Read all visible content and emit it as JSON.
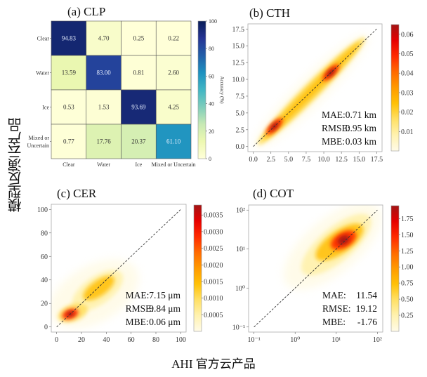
{
  "figure": {
    "ylabel": "模型反演云产品",
    "xlabel": "AHI 官方云产品"
  },
  "colors": {
    "ylgnbu": [
      "#ffffd9",
      "#edf8b1",
      "#c7e9b4",
      "#7fcdbb",
      "#41b6c4",
      "#1d91c0",
      "#225ea8",
      "#253494",
      "#081d58"
    ],
    "hot": [
      "#fffbe8",
      "#fff2b0",
      "#ffe066",
      "#ffc107",
      "#ff9a00",
      "#ff6a00",
      "#ff2a00",
      "#e60000",
      "#a31515"
    ]
  },
  "chart_data": [
    {
      "type": "heatmap",
      "title": "(a) CLP",
      "row_labels": [
        "Clear",
        "Water",
        "Ice",
        "Mixed or Uncertain"
      ],
      "row_label_lines": [
        [
          "Clear"
        ],
        [
          "Water"
        ],
        [
          "Ice"
        ],
        [
          "Mixed or",
          "Uncertain"
        ]
      ],
      "col_labels": [
        "Clear",
        "Water",
        "Ice",
        "Mixed or Uncertain"
      ],
      "values": [
        [
          94.83,
          4.7,
          0.25,
          0.22
        ],
        [
          13.59,
          83.0,
          0.81,
          2.6
        ],
        [
          0.53,
          1.53,
          93.69,
          4.25
        ],
        [
          0.77,
          17.76,
          20.37,
          61.1
        ]
      ],
      "value_labels": [
        [
          "94.83",
          "4.70",
          "0.25",
          "0.22"
        ],
        [
          "13.59",
          "83.00",
          "0.81",
          "2.60"
        ],
        [
          "0.53",
          "1.53",
          "93.69",
          "4.25"
        ],
        [
          "0.77",
          "17.76",
          "20.37",
          "61.10"
        ]
      ],
      "colorbar": {
        "label": "Accuracy (%)",
        "range": [
          0,
          100
        ],
        "ticks": [
          "0",
          "20",
          "40",
          "60",
          "80",
          "100"
        ]
      }
    },
    {
      "type": "density-scatter",
      "title": "(b) CTH",
      "xlim": [
        0,
        17.5
      ],
      "ylim": [
        0,
        17.5
      ],
      "scale": "linear",
      "xticks": [
        "0.0",
        "2.5",
        "5.0",
        "7.5",
        "10.0",
        "12.5",
        "15.0",
        "17.5"
      ],
      "yticks": [
        "0.0",
        "2.5",
        "5.0",
        "7.5",
        "10.0",
        "12.5",
        "15.0",
        "17.5"
      ],
      "reference_line": "1:1",
      "density_peaks": [
        {
          "x": 3.0,
          "y": 3.0
        },
        {
          "x": 11.0,
          "y": 11.0
        }
      ],
      "stats": [
        {
          "name": "MAE:",
          "value": "0.71 km"
        },
        {
          "name": "RMSE:",
          "value": "0.95 km"
        },
        {
          "name": "MBE:",
          "value": "0.03 km"
        }
      ],
      "colorbar": {
        "range": [
          0,
          0.065
        ],
        "ticks": [
          "0.01",
          "0.02",
          "0.03",
          "0.04",
          "0.05",
          "0.06"
        ]
      }
    },
    {
      "type": "density-scatter",
      "title": "(c) CER",
      "xlim": [
        0,
        100
      ],
      "ylim": [
        0,
        100
      ],
      "scale": "linear",
      "xticks": [
        "0",
        "20",
        "40",
        "60",
        "80",
        "100"
      ],
      "yticks": [
        "0",
        "20",
        "40",
        "60",
        "80",
        "100"
      ],
      "reference_line": "1:1",
      "density_peaks": [
        {
          "x": 11,
          "y": 11
        },
        {
          "x": 35,
          "y": 33
        }
      ],
      "stats": [
        {
          "name": "MAE:",
          "value": "7.15 μm"
        },
        {
          "name": "RMSE:",
          "value": "9.84 μm"
        },
        {
          "name": "MBE:",
          "value": "0.06 μm"
        }
      ],
      "colorbar": {
        "range": [
          0,
          0.0038
        ],
        "ticks": [
          "0.0005",
          "0.0010",
          "0.0015",
          "0.0020",
          "0.0025",
          "0.0030",
          "0.0035"
        ]
      }
    },
    {
      "type": "density-scatter",
      "title": "(d) COT",
      "xlim": [
        0.1,
        100
      ],
      "ylim": [
        0.1,
        100
      ],
      "scale": "log",
      "xticks": [
        "10⁻¹",
        "10⁰",
        "10¹",
        "10²"
      ],
      "yticks": [
        "10⁻¹",
        "10⁰",
        "10¹",
        "10²"
      ],
      "reference_line": "1:1",
      "density_peaks": [
        {
          "x": 15,
          "y": 17
        }
      ],
      "stats": [
        {
          "name": "MAE:",
          "value": "11.54"
        },
        {
          "name": "RMSE:",
          "value": "19.12"
        },
        {
          "name": "MBE:",
          "value": "-1.76"
        }
      ],
      "colorbar": {
        "range": [
          0,
          1.95
        ],
        "ticks": [
          "0.25",
          "0.50",
          "0.75",
          "1.00",
          "1.25",
          "1.50",
          "1.75"
        ]
      }
    }
  ]
}
